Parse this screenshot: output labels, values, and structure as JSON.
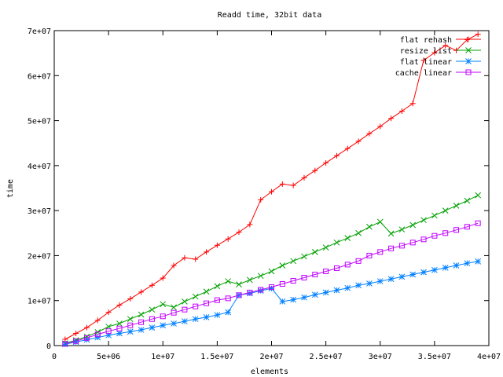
{
  "chart_data": {
    "type": "line",
    "title": "Readd time, 32bit data",
    "xlabel": "elements",
    "ylabel": "time",
    "xlim": [
      0,
      40000000
    ],
    "ylim": [
      0,
      70000000
    ],
    "xticks": [
      0,
      5000000,
      10000000,
      15000000,
      20000000,
      25000000,
      30000000,
      35000000,
      40000000
    ],
    "xtick_labels": [
      "0",
      "5e+06",
      "1e+07",
      "1.5e+07",
      "2e+07",
      "2.5e+07",
      "3e+07",
      "3.5e+07",
      "4e+07"
    ],
    "yticks": [
      0,
      10000000,
      20000000,
      30000000,
      40000000,
      50000000,
      60000000,
      70000000
    ],
    "ytick_labels": [
      "0",
      "1e+07",
      "2e+07",
      "3e+07",
      "4e+07",
      "5e+07",
      "6e+07",
      "7e+07"
    ],
    "grid": false,
    "legend_position": "top-right",
    "x": [
      1000000,
      2000000,
      3000000,
      4000000,
      5000000,
      6000000,
      7000000,
      8000000,
      9000000,
      10000000,
      11000000,
      12000000,
      13000000,
      14000000,
      15000000,
      16000000,
      17000000,
      18000000,
      19000000,
      20000000,
      21000000,
      22000000,
      23000000,
      24000000,
      25000000,
      26000000,
      27000000,
      28000000,
      29000000,
      30000000,
      31000000,
      32000000,
      33000000,
      34000000,
      35000000,
      36000000,
      37000000,
      38000000,
      39000000
    ],
    "series": [
      {
        "name": "flat rehash",
        "color": "#ff0000",
        "marker": "plus",
        "values": [
          1400000,
          2700000,
          4000000,
          5600000,
          7400000,
          9000000,
          10400000,
          11900000,
          13400000,
          15000000,
          17800000,
          19500000,
          19200000,
          20800000,
          22300000,
          23700000,
          25200000,
          26900000,
          32400000,
          34200000,
          35900000,
          35600000,
          37300000,
          38900000,
          40600000,
          42200000,
          43800000,
          45400000,
          47100000,
          48700000,
          50500000,
          52100000,
          53800000,
          63400000,
          65100000,
          66700000,
          65600000,
          68000000,
          69200000
        ]
      },
      {
        "name": "resize list",
        "color": "#00a000",
        "marker": "cross",
        "values": [
          500000,
          1200000,
          2000000,
          3000000,
          4200000,
          4900000,
          5900000,
          6900000,
          8000000,
          9200000,
          8500000,
          9800000,
          10900000,
          12000000,
          13200000,
          14300000,
          13600000,
          14600000,
          15500000,
          16500000,
          17800000,
          18800000,
          19800000,
          20800000,
          21800000,
          22900000,
          23900000,
          25000000,
          26400000,
          27500000,
          24900000,
          25800000,
          26800000,
          27900000,
          28900000,
          30000000,
          31100000,
          32200000,
          33400000
        ]
      },
      {
        "name": "flat linear",
        "color": "#0080ff",
        "marker": "star",
        "values": [
          300000,
          800000,
          1300000,
          1800000,
          2300000,
          2700000,
          3100000,
          3500000,
          4000000,
          4500000,
          4900000,
          5400000,
          5900000,
          6300000,
          6800000,
          7400000,
          11200000,
          11600000,
          12200000,
          12700000,
          9800000,
          10200000,
          10700000,
          11300000,
          11800000,
          12300000,
          12800000,
          13400000,
          13800000,
          14300000,
          14800000,
          15300000,
          15800000,
          16300000,
          16800000,
          17300000,
          17800000,
          18300000,
          18700000
        ]
      },
      {
        "name": "cache linear",
        "color": "#c000ff",
        "marker": "square",
        "values": [
          400000,
          1000000,
          1700000,
          2500000,
          3200000,
          3800000,
          4500000,
          5200000,
          5900000,
          6500000,
          7300000,
          8000000,
          8700000,
          9400000,
          10100000,
          10500000,
          11200000,
          11800000,
          12400000,
          13000000,
          13700000,
          14400000,
          15100000,
          15800000,
          16500000,
          17200000,
          18000000,
          18800000,
          20000000,
          20800000,
          21600000,
          22200000,
          22900000,
          23600000,
          24400000,
          25000000,
          25700000,
          26400000,
          27200000
        ]
      }
    ]
  }
}
